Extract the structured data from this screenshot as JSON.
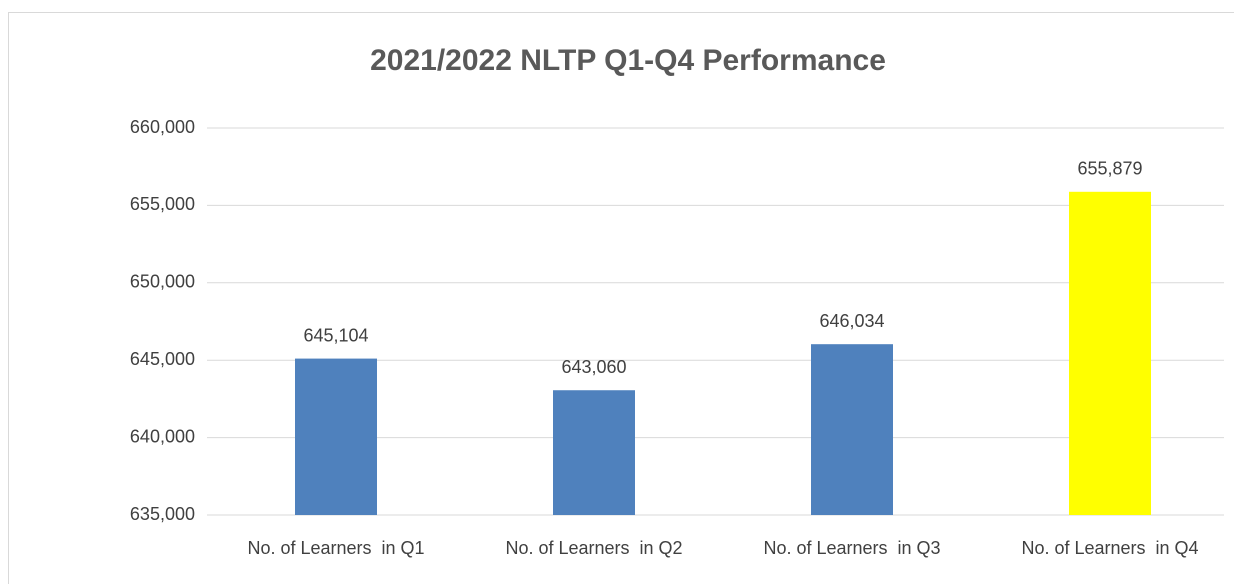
{
  "chart_data": {
    "type": "bar",
    "title": "2021/2022 NLTP Q1-Q4 Performance",
    "categories": [
      "No. of Learners  in Q1",
      "No. of Learners  in Q2",
      "No. of Learners  in Q3",
      "No. of Learners  in Q4"
    ],
    "values": [
      645104,
      643060,
      646034,
      655879
    ],
    "value_labels": [
      "645,104",
      "643,060",
      "646,034",
      "655,879"
    ],
    "colors": [
      "#4f81bd",
      "#4f81bd",
      "#4f81bd",
      "#ffff00"
    ],
    "ylim": [
      635000,
      660000
    ],
    "yticks": [
      {
        "value": 635000,
        "label": "635,000"
      },
      {
        "value": 640000,
        "label": "640,000"
      },
      {
        "value": 645000,
        "label": "645,000"
      },
      {
        "value": 650000,
        "label": "650,000"
      },
      {
        "value": 655000,
        "label": "655,000"
      },
      {
        "value": 660000,
        "label": "660,000"
      }
    ],
    "grid": true
  }
}
